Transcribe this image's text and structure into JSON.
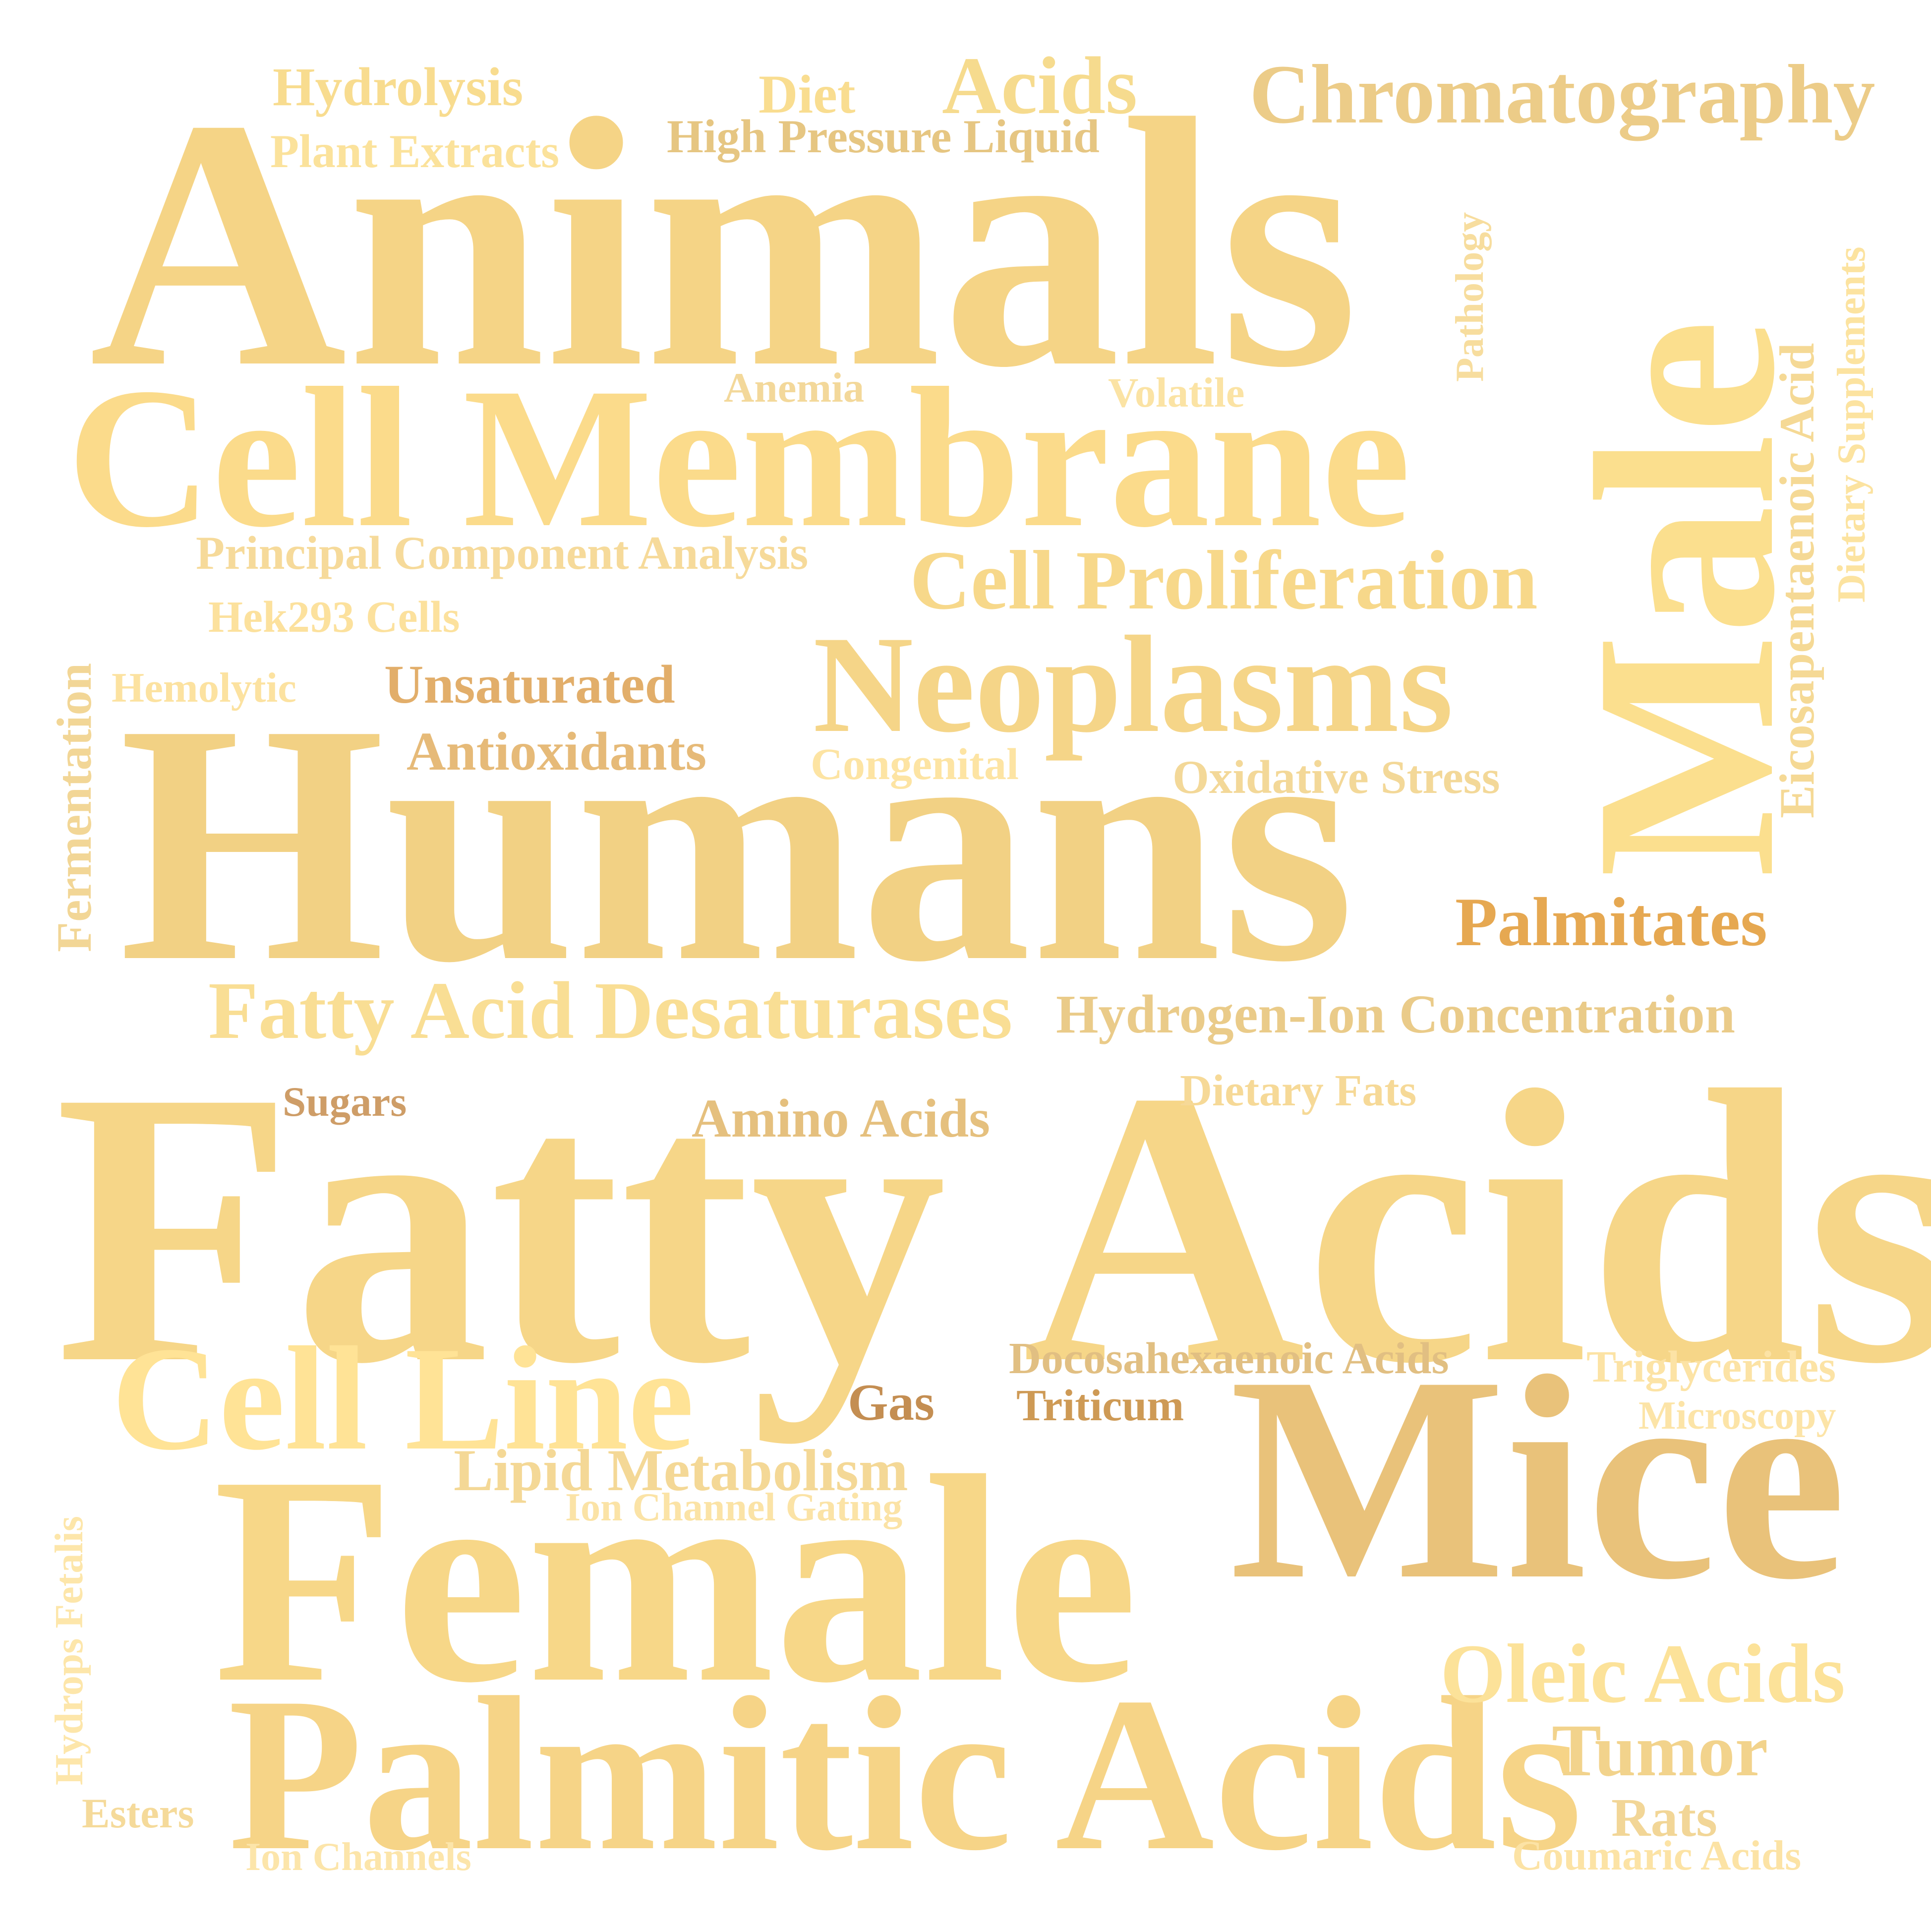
{
  "title": "Word cloud",
  "words": {
    "animals": {
      "text": "Animals",
      "color": "#F5D486"
    },
    "cell_membrane": {
      "text": "Cell Membrane",
      "color": "#FBDB8B"
    },
    "humans": {
      "text": "Humans",
      "color": "#F2D184"
    },
    "fatty_acids": {
      "text": "Fatty Acids",
      "color": "#F6D688"
    },
    "female": {
      "text": "Female",
      "color": "#F7D788"
    },
    "palmitic_acids": {
      "text": "Palmitic Acids",
      "color": "#F6D487"
    },
    "mice": {
      "text": "Mice",
      "color": "#E9C27A"
    },
    "male": {
      "text": "Male",
      "color": "#FBDF8E"
    },
    "neoplasms": {
      "text": "Neoplasms",
      "color": "#F5D588"
    },
    "cell_line": {
      "text": "Cell Line",
      "color": "#FFE396"
    },
    "cell_proliferation": {
      "text": "Cell Proliferation",
      "color": "#F7D88A"
    },
    "chromatography": {
      "text": "Chromatography",
      "color": "#ECCC88"
    },
    "fatty_acid_desaturases": {
      "text": "Fatty Acid Desaturases",
      "color": "#F9DE94"
    },
    "hydrogen_ion": {
      "text": "Hydrogen-Ion Concentration",
      "color": "#EACB89"
    },
    "acids": {
      "text": "Acids",
      "color": "#F6DB8E"
    },
    "oleic_acids": {
      "text": "Oleic Acids",
      "color": "#FCE299"
    },
    "tumor": {
      "text": "Tumor",
      "color": "#F2D38C"
    },
    "palmitates": {
      "text": "Palmitates",
      "color": "#E6A851"
    },
    "lipid_metabolism": {
      "text": "Lipid Metabolism",
      "color": "#F4D896"
    },
    "unsaturated": {
      "text": "Unsaturated",
      "color": "#E2AE6A"
    },
    "antioxidants": {
      "text": "Antioxidants",
      "color": "#E6BA78"
    },
    "amino_acids": {
      "text": "Amino Acids",
      "color": "#E5C07E"
    },
    "hydrolysis": {
      "text": "Hydrolysis",
      "color": "#F8DC8F"
    },
    "diet": {
      "text": "Diet",
      "color": "#F9DD90"
    },
    "high_pressure_liquid": {
      "text": "High Pressure Liquid",
      "color": "#E6C682"
    },
    "plant_extracts": {
      "text": "Plant Extracts",
      "color": "#FBE29B"
    },
    "rats": {
      "text": "Rats",
      "color": "#F2D697"
    },
    "eicosapentaenoic": {
      "text": "Eicosapentaenoic Acid",
      "color": "#F5D995"
    },
    "dietary_supplements": {
      "text": "Dietary Supplements",
      "color": "#FCE3A0"
    },
    "fermentation": {
      "text": "Fermentation",
      "color": "#F2D696"
    },
    "oxidative_stress": {
      "text": "Oxidative Stress",
      "color": "#F3D898"
    },
    "principal_component": {
      "text": "Principal Component Analysis",
      "color": "#F6DA9A"
    },
    "docosahexaenoic": {
      "text": "Docosahexaenoic Acids",
      "color": "#E1BF82"
    },
    "triglycerides": {
      "text": "Triglycerides",
      "color": "#FCE3A5"
    },
    "triticum": {
      "text": "Triticum",
      "color": "#CE9A55"
    },
    "gas": {
      "text": "Gas",
      "color": "#C48E52"
    },
    "sugars": {
      "text": "Sugars",
      "color": "#CE9D67"
    },
    "dietary_fats": {
      "text": "Dietary Fats",
      "color": "#F6D997"
    },
    "congenital": {
      "text": "Congenital",
      "color": "#FDE4A3"
    },
    "hek293": {
      "text": "Hek293 Cells",
      "color": "#FCE19D"
    },
    "hemolytic": {
      "text": "Hemolytic",
      "color": "#FCE2A0"
    },
    "anemia": {
      "text": "Anemia",
      "color": "#F3D89A"
    },
    "volatile": {
      "text": "Volatile",
      "color": "#FBE3A4"
    },
    "pathology": {
      "text": "Pathology",
      "color": "#F7DD9E"
    },
    "microscopy": {
      "text": "Microscopy",
      "color": "#FCE4A7"
    },
    "ion_channel_gating": {
      "text": "Ion Channel Gating",
      "color": "#FBE3A6"
    },
    "hydrops_fetalis": {
      "text": "Hydrops Fetalis",
      "color": "#FDE6AA"
    },
    "esters": {
      "text": "Esters",
      "color": "#F5DA9A"
    },
    "ion_channels": {
      "text": "Ion Channels",
      "color": "#FCE5AA"
    },
    "coumaric_acids": {
      "text": "Coumaric Acids",
      "color": "#FCE3A5"
    }
  }
}
